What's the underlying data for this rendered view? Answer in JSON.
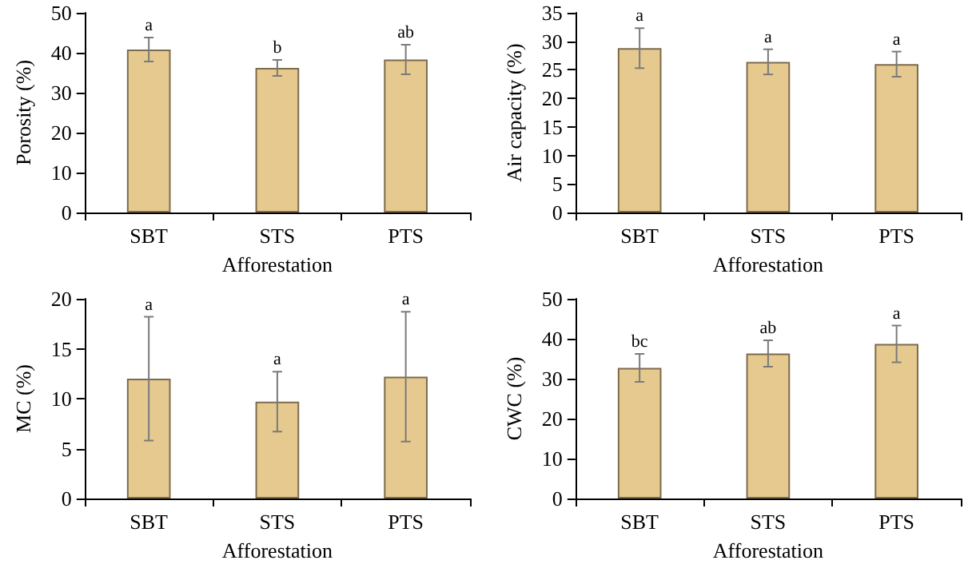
{
  "chart_data": [
    {
      "type": "bar",
      "xlabel": "Afforestation",
      "ylabel": "Porosity (%)",
      "categories": [
        "SBT",
        "STS",
        "PTS"
      ],
      "values": [
        40.8,
        36.2,
        38.3
      ],
      "errors": [
        3,
        2,
        3.7
      ],
      "color": "#e6c98f",
      "ylim": [
        0,
        50
      ],
      "yticks": [
        0,
        10,
        20,
        30,
        40,
        50
      ],
      "grid": false,
      "annotations": [
        {
          "text": "a",
          "x": "SBT",
          "y": 43.8
        },
        {
          "text": "b",
          "x": "STS",
          "y": 38.2
        },
        {
          "text": "ab",
          "x": "PTS",
          "y": 42
        }
      ]
    },
    {
      "type": "bar",
      "xlabel": "Afforestation",
      "ylabel": "Air capacity (%)",
      "categories": [
        "SBT",
        "STS",
        "PTS"
      ],
      "values": [
        28.8,
        26.4,
        26
      ],
      "errors": [
        3.5,
        2.2,
        2.2
      ],
      "color": "#e6c98f",
      "ylim": [
        0,
        35
      ],
      "yticks": [
        0,
        5,
        10,
        15,
        20,
        25,
        30,
        35
      ],
      "grid": false,
      "annotations": [
        {
          "text": "a",
          "x": "SBT",
          "y": 32.3
        },
        {
          "text": "a",
          "x": "STS",
          "y": 28.6
        },
        {
          "text": "a",
          "x": "PTS",
          "y": 28.2
        }
      ]
    },
    {
      "type": "bar",
      "xlabel": "Afforestation",
      "ylabel": "MC (%)",
      "categories": [
        "SBT",
        "STS",
        "PTS"
      ],
      "values": [
        12,
        9.7,
        12.2
      ],
      "errors": [
        6.2,
        3,
        6.5
      ],
      "color": "#e6c98f",
      "ylim": [
        0,
        20
      ],
      "yticks": [
        0,
        5,
        10,
        15,
        20
      ],
      "grid": false,
      "annotations": [
        {
          "text": "a",
          "x": "SBT",
          "y": 18.2
        },
        {
          "text": "a",
          "x": "STS",
          "y": 12.7
        },
        {
          "text": "a",
          "x": "PTS",
          "y": 18.7
        }
      ]
    },
    {
      "type": "bar",
      "xlabel": "Afforestation",
      "ylabel": "CWC (%)",
      "categories": [
        "SBT",
        "STS",
        "PTS"
      ],
      "values": [
        32.7,
        36.3,
        38.7
      ],
      "errors": [
        3.5,
        3.3,
        4.6
      ],
      "color": "#e6c98f",
      "ylim": [
        0,
        50
      ],
      "yticks": [
        0,
        10,
        20,
        30,
        40,
        50
      ],
      "grid": false,
      "annotations": [
        {
          "text": "bc",
          "x": "SBT",
          "y": 36.2
        },
        {
          "text": "ab",
          "x": "STS",
          "y": 39.6
        },
        {
          "text": "a",
          "x": "PTS",
          "y": 43.3
        }
      ]
    }
  ]
}
